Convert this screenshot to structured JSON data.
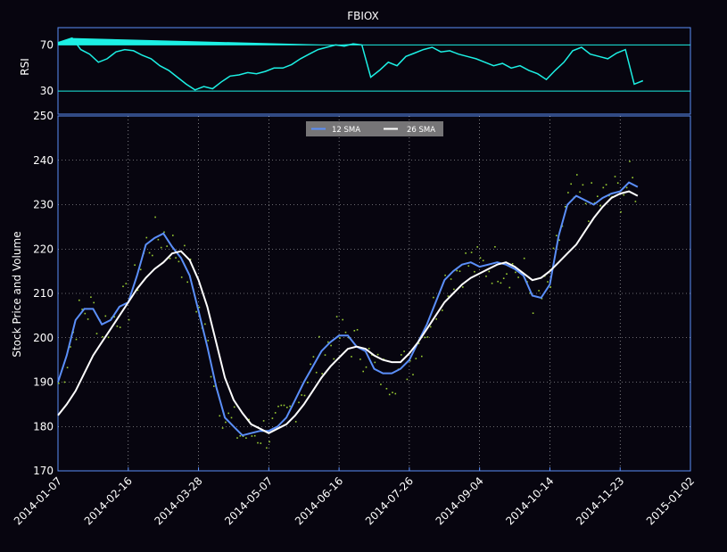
{
  "chart_data": [
    {
      "type": "line",
      "title": "FBIOX",
      "ylabel": "RSI",
      "ylim": [
        10,
        85
      ],
      "yticks": [
        30,
        70
      ],
      "reference_lines": [
        30,
        70
      ],
      "colors": {
        "line": "#1cf0e4",
        "fill": "#1cf0e4",
        "frame": "#5b8ff9"
      },
      "series": [
        {
          "x": [
            "2014-01-07",
            "2014-01-11",
            "2014-01-15",
            "2014-01-20",
            "2014-01-25",
            "2014-01-30",
            "2014-02-04",
            "2014-02-09",
            "2014-02-14",
            "2014-02-19",
            "2014-02-24",
            "2014-03-01",
            "2014-03-06",
            "2014-03-11",
            "2014-03-16",
            "2014-03-21",
            "2014-03-26",
            "2014-03-31",
            "2014-04-05",
            "2014-04-10",
            "2014-04-15",
            "2014-04-20",
            "2014-04-25",
            "2014-04-30",
            "2014-05-05",
            "2014-05-10",
            "2014-05-15",
            "2014-05-20",
            "2014-05-25",
            "2014-05-30",
            "2014-06-04",
            "2014-06-09",
            "2014-06-14",
            "2014-06-19",
            "2014-06-24",
            "2014-06-29",
            "2014-07-04",
            "2014-07-09",
            "2014-07-14",
            "2014-07-19",
            "2014-07-24",
            "2014-07-29",
            "2014-08-03",
            "2014-08-08",
            "2014-08-13",
            "2014-08-18",
            "2014-08-23",
            "2014-08-28",
            "2014-09-02",
            "2014-09-07",
            "2014-09-12",
            "2014-09-17",
            "2014-09-22",
            "2014-09-27",
            "2014-10-02",
            "2014-10-07",
            "2014-10-12",
            "2014-10-17",
            "2014-10-22",
            "2014-10-27",
            "2014-11-01",
            "2014-11-06",
            "2014-11-11",
            "2014-11-16",
            "2014-11-21",
            "2014-11-26",
            "2014-12-01",
            "2014-12-06"
          ],
          "values": [
            72,
            74,
            76,
            66,
            62,
            55,
            58,
            64,
            66,
            65,
            61,
            58,
            52,
            48,
            42,
            36,
            31,
            34,
            32,
            38,
            43,
            44,
            46,
            45,
            47,
            50,
            50,
            53,
            58,
            62,
            66,
            68,
            70,
            69,
            71,
            70,
            42,
            48,
            55,
            52,
            60,
            63,
            66,
            68,
            64,
            65,
            62,
            60,
            58,
            55,
            52,
            54,
            50,
            52,
            48,
            45,
            40,
            48,
            55,
            65,
            68,
            62,
            60,
            58,
            63,
            66,
            36,
            39
          ],
          "fill_above": 70
        }
      ]
    },
    {
      "type": "line",
      "title": "",
      "ylabel": "Stock Price and Volume",
      "xlabel": "",
      "ylim": [
        170,
        250
      ],
      "yticks": [
        170,
        180,
        190,
        200,
        210,
        220,
        230,
        240,
        250
      ],
      "xlim": [
        "2014-01-07",
        "2015-01-02"
      ],
      "xticks": [
        "2014-01-07",
        "2014-02-16",
        "2014-03-28",
        "2014-05-07",
        "2014-06-16",
        "2014-07-26",
        "2014-09-04",
        "2014-10-14",
        "2014-11-23",
        "2015-01-02"
      ],
      "grid": true,
      "legend_position": "top-center",
      "series": [
        {
          "name": "12 SMA",
          "color": "#5b8ff9",
          "x": [
            "2014-01-07",
            "2014-01-12",
            "2014-01-17",
            "2014-01-22",
            "2014-01-27",
            "2014-02-01",
            "2014-02-06",
            "2014-02-11",
            "2014-02-16",
            "2014-02-21",
            "2014-02-26",
            "2014-03-03",
            "2014-03-08",
            "2014-03-13",
            "2014-03-18",
            "2014-03-23",
            "2014-03-28",
            "2014-04-02",
            "2014-04-07",
            "2014-04-12",
            "2014-04-17",
            "2014-04-22",
            "2014-04-27",
            "2014-05-02",
            "2014-05-07",
            "2014-05-12",
            "2014-05-17",
            "2014-05-22",
            "2014-05-27",
            "2014-06-01",
            "2014-06-06",
            "2014-06-11",
            "2014-06-16",
            "2014-06-21",
            "2014-06-26",
            "2014-07-01",
            "2014-07-06",
            "2014-07-11",
            "2014-07-16",
            "2014-07-21",
            "2014-07-26",
            "2014-07-31",
            "2014-08-05",
            "2014-08-10",
            "2014-08-15",
            "2014-08-20",
            "2014-08-25",
            "2014-08-30",
            "2014-09-04",
            "2014-09-09",
            "2014-09-14",
            "2014-09-19",
            "2014-09-24",
            "2014-09-29",
            "2014-10-04",
            "2014-10-09",
            "2014-10-14",
            "2014-10-19",
            "2014-10-24",
            "2014-10-29",
            "2014-11-03",
            "2014-11-08",
            "2014-11-13",
            "2014-11-18",
            "2014-11-23",
            "2014-11-28",
            "2014-12-03"
          ],
          "values": [
            190,
            196,
            204,
            206.5,
            206.5,
            203,
            204,
            207,
            208,
            214,
            221,
            222.5,
            223.5,
            220.5,
            218,
            214,
            206,
            198,
            189,
            182,
            180,
            178,
            178.5,
            179,
            179,
            180,
            182,
            186,
            190,
            193.5,
            197,
            199,
            200.5,
            200.5,
            198,
            197,
            193,
            192,
            192,
            193,
            195,
            199,
            203,
            208,
            213,
            215,
            216.5,
            217,
            216,
            216.5,
            217,
            216.5,
            215.5,
            214,
            209.5,
            209,
            212,
            223,
            230,
            232,
            231,
            230,
            231.5,
            232.5,
            233,
            235,
            234
          ]
        },
        {
          "name": "26 SMA",
          "color": "#ffffff",
          "x": [
            "2014-01-07",
            "2014-01-12",
            "2014-01-17",
            "2014-01-22",
            "2014-01-27",
            "2014-02-01",
            "2014-02-06",
            "2014-02-11",
            "2014-02-16",
            "2014-02-21",
            "2014-02-26",
            "2014-03-03",
            "2014-03-08",
            "2014-03-13",
            "2014-03-18",
            "2014-03-23",
            "2014-03-28",
            "2014-04-02",
            "2014-04-07",
            "2014-04-12",
            "2014-04-17",
            "2014-04-22",
            "2014-04-27",
            "2014-05-02",
            "2014-05-07",
            "2014-05-12",
            "2014-05-17",
            "2014-05-22",
            "2014-05-27",
            "2014-06-01",
            "2014-06-06",
            "2014-06-11",
            "2014-06-16",
            "2014-06-21",
            "2014-06-26",
            "2014-07-01",
            "2014-07-06",
            "2014-07-11",
            "2014-07-16",
            "2014-07-21",
            "2014-07-26",
            "2014-07-31",
            "2014-08-05",
            "2014-08-10",
            "2014-08-15",
            "2014-08-20",
            "2014-08-25",
            "2014-08-30",
            "2014-09-04",
            "2014-09-09",
            "2014-09-14",
            "2014-09-19",
            "2014-09-24",
            "2014-09-29",
            "2014-10-04",
            "2014-10-09",
            "2014-10-14",
            "2014-10-19",
            "2014-10-24",
            "2014-10-29",
            "2014-11-03",
            "2014-11-08",
            "2014-11-13",
            "2014-11-18",
            "2014-11-23",
            "2014-11-28",
            "2014-12-03"
          ],
          "values": [
            182.5,
            185,
            188,
            192,
            196,
            199,
            202,
            205,
            208,
            211,
            213.5,
            215.5,
            217,
            219,
            219.5,
            217.5,
            213,
            207,
            199,
            191,
            186,
            183,
            180.5,
            179.5,
            178.5,
            179.5,
            180.5,
            182.5,
            185,
            188,
            191,
            193.5,
            195.5,
            197.5,
            198,
            197.5,
            196,
            195,
            194.5,
            194.5,
            196.5,
            199,
            202,
            205,
            208,
            210,
            212,
            213.5,
            214.5,
            215.5,
            216.5,
            217,
            216,
            214.5,
            213,
            213.5,
            215,
            217,
            219,
            221,
            224,
            227,
            229.5,
            231.5,
            232.5,
            233,
            232
          ]
        }
      ],
      "scatter_points_color": "#9acd32"
    }
  ]
}
